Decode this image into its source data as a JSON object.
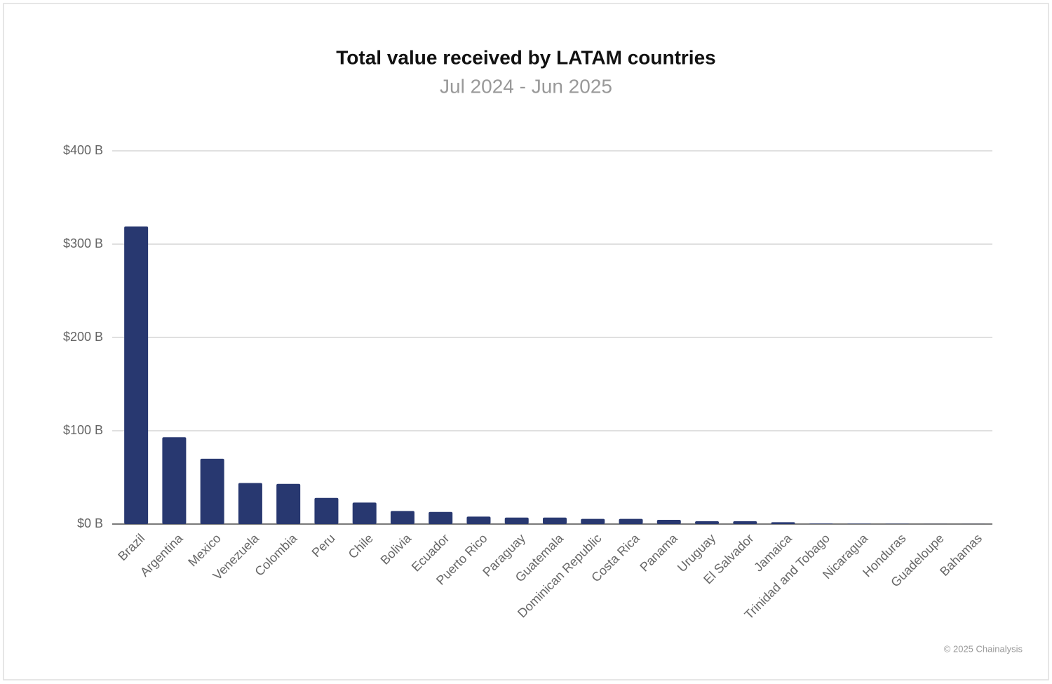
{
  "chart_data": {
    "type": "bar",
    "title": "Total value received by LATAM countries",
    "subtitle": "Jul 2024 - Jun 2025",
    "categories": [
      "Brazil",
      "Argentina",
      "Mexico",
      "Venezuela",
      "Colombia",
      "Peru",
      "Chile",
      "Bolivia",
      "Ecuador",
      "Puerto Rico",
      "Paraguay",
      "Guatemala",
      "Dominican Republic",
      "Costa Rica",
      "Panama",
      "Uruguay",
      "El Salvador",
      "Jamaica",
      "Trinidad and Tobago",
      "Nicaragua",
      "Honduras",
      "Guadeloupe",
      "Bahamas"
    ],
    "values": [
      319,
      93,
      70,
      44,
      43,
      28,
      23,
      14,
      13,
      8,
      7,
      7,
      5.5,
      5.5,
      4.5,
      3,
      3,
      2,
      0.5,
      0.4,
      0.3,
      0.1,
      0.05
    ],
    "color": "#283870",
    "ylim": [
      0,
      400
    ],
    "yticks": [
      {
        "value": 0,
        "label": "$0 B"
      },
      {
        "value": 100,
        "label": "$100 B"
      },
      {
        "value": 200,
        "label": "$200 B"
      },
      {
        "value": 300,
        "label": "$300 B"
      },
      {
        "value": 400,
        "label": "$400 B"
      }
    ],
    "grid": true,
    "footer": "© 2025 Chainalysis"
  }
}
